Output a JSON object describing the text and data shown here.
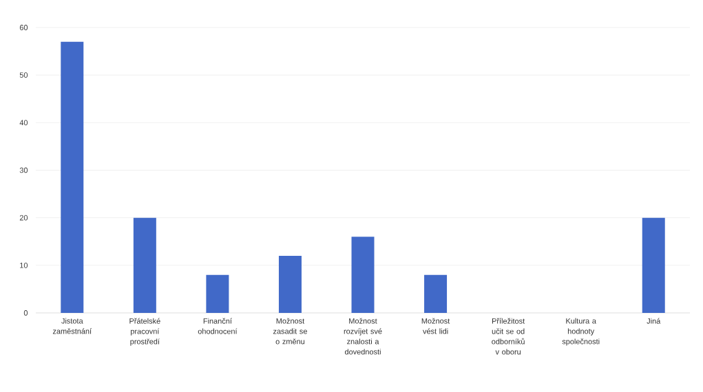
{
  "chart_data": {
    "type": "bar",
    "categories": [
      "Jistota zaměstnání",
      "Přátelské pracovní prostředí",
      "Finanční ohodnocení",
      "Možnost zasadit se o změnu",
      "Možnost rozvíjet své znalosti a dovednosti",
      "Možnost vést lidi",
      "Příležitost učit se od odborníků v oboru",
      "Kultura a hodnoty společnosti",
      "Jiná"
    ],
    "values": [
      57,
      20,
      8,
      12,
      16,
      8,
      0,
      0,
      20
    ],
    "color": "#4169c8",
    "ylim": [
      0,
      60
    ],
    "yticks": [
      0,
      10,
      20,
      30,
      40,
      50,
      60
    ],
    "grid": "y"
  }
}
